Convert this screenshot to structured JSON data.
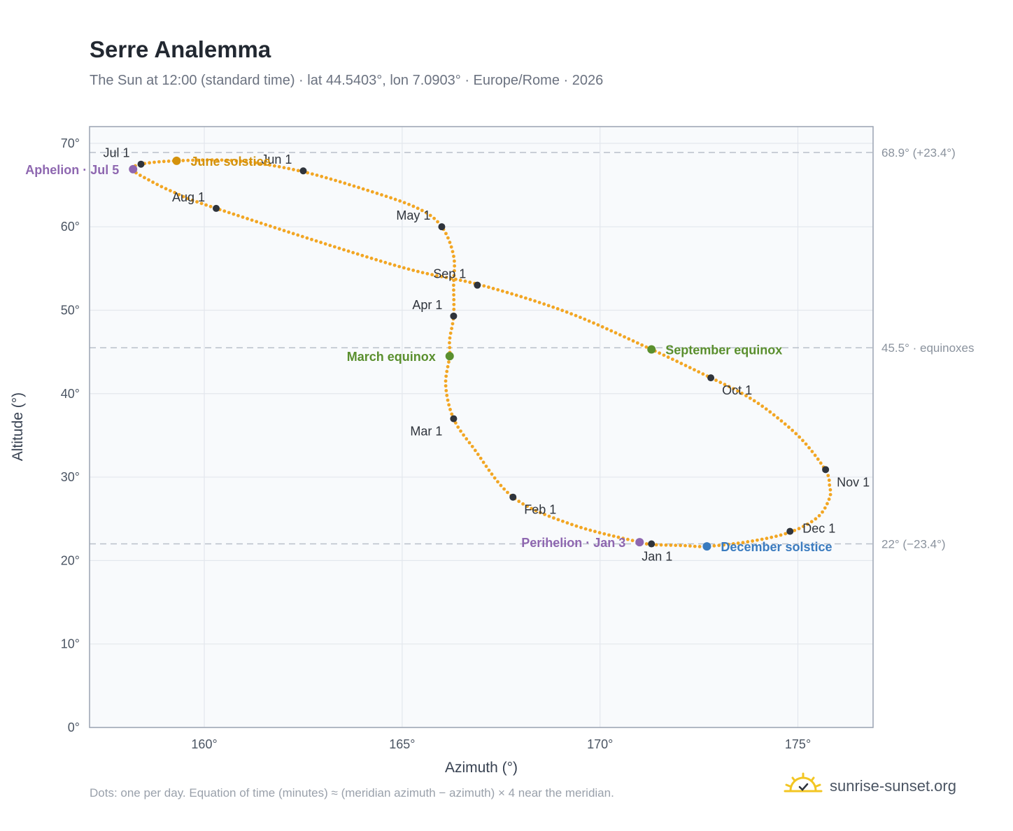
{
  "header": {
    "title": "Serre Analemma",
    "subtitle": "The Sun at 12:00 (standard time) · lat 44.5403°, lon 7.0903° · Europe/Rome · 2026"
  },
  "footer": {
    "note": "Dots: one per day. Equation of time (minutes) ≈ (meridian azimuth − azimuth) × 4 near the meridian.",
    "brand": "sunrise-sunset.org"
  },
  "colors": {
    "path": "#f2a623",
    "month_marker": "#2f343c",
    "equinox": "#5a8f2e",
    "june_solstice": "#d4920c",
    "december_solstice": "#3a7bbf",
    "apsis": "#8e67b0",
    "plot_background": "#f8fafc",
    "brand_sun": "#f3c623"
  },
  "chart_data": {
    "type": "scatter",
    "xlabel": "Azimuth (°)",
    "ylabel": "Altitude (°)",
    "xlim": [
      157.1,
      176.9
    ],
    "ylim": [
      0,
      72
    ],
    "xticks": [
      160,
      165,
      170,
      175
    ],
    "yticks": [
      0,
      10,
      20,
      30,
      40,
      50,
      60,
      70
    ],
    "xtick_labels": [
      "160°",
      "165°",
      "170°",
      "175°"
    ],
    "ytick_labels": [
      "0°",
      "10°",
      "20°",
      "30°",
      "40°",
      "50°",
      "60°",
      "70°"
    ],
    "grid": true,
    "path_anchors": [
      {
        "x": 171.3,
        "y": 21.9
      },
      {
        "x": 172.1,
        "y": 21.8
      },
      {
        "x": 172.7,
        "y": 21.7
      },
      {
        "x": 173.8,
        "y": 22.3
      },
      {
        "x": 174.8,
        "y": 23.4
      },
      {
        "x": 175.5,
        "y": 25.2
      },
      {
        "x": 175.8,
        "y": 27.5
      },
      {
        "x": 175.8,
        "y": 29.0
      },
      {
        "x": 175.7,
        "y": 30.8
      },
      {
        "x": 175.1,
        "y": 34.5
      },
      {
        "x": 174.3,
        "y": 37.8
      },
      {
        "x": 173.6,
        "y": 40.0
      },
      {
        "x": 172.8,
        "y": 41.9
      },
      {
        "x": 171.3,
        "y": 45.3
      },
      {
        "x": 169.2,
        "y": 49.7
      },
      {
        "x": 167.0,
        "y": 53.0
      },
      {
        "x": 164.8,
        "y": 55.4
      },
      {
        "x": 160.3,
        "y": 62.2
      },
      {
        "x": 159.2,
        "y": 64.2
      },
      {
        "x": 158.6,
        "y": 65.6
      },
      {
        "x": 158.2,
        "y": 66.8
      },
      {
        "x": 158.4,
        "y": 67.5
      },
      {
        "x": 159.3,
        "y": 67.9
      },
      {
        "x": 160.8,
        "y": 67.9
      },
      {
        "x": 162.4,
        "y": 66.7
      },
      {
        "x": 164.1,
        "y": 64.4
      },
      {
        "x": 165.4,
        "y": 62.2
      },
      {
        "x": 166.0,
        "y": 60.0
      },
      {
        "x": 166.3,
        "y": 56.5
      },
      {
        "x": 166.3,
        "y": 53.0
      },
      {
        "x": 166.3,
        "y": 49.3
      },
      {
        "x": 166.2,
        "y": 46.5
      },
      {
        "x": 166.2,
        "y": 44.5
      },
      {
        "x": 166.1,
        "y": 41.0
      },
      {
        "x": 166.3,
        "y": 37.0
      },
      {
        "x": 166.8,
        "y": 33.5
      },
      {
        "x": 167.8,
        "y": 27.6
      },
      {
        "x": 169.3,
        "y": 24.3
      },
      {
        "x": 171.0,
        "y": 22.2
      },
      {
        "x": 171.3,
        "y": 21.9
      }
    ],
    "month_markers": [
      {
        "label": "Jan 1",
        "x": 171.3,
        "y": 22.0,
        "anchor": "below"
      },
      {
        "label": "Feb 1",
        "x": 167.8,
        "y": 27.6,
        "anchor": "below-right"
      },
      {
        "label": "Mar 1",
        "x": 166.3,
        "y": 37.0,
        "anchor": "below-left"
      },
      {
        "label": "Apr 1",
        "x": 166.3,
        "y": 49.3,
        "anchor": "above-left"
      },
      {
        "label": "May 1",
        "x": 166.0,
        "y": 60.0,
        "anchor": "above-left"
      },
      {
        "label": "Jun 1",
        "x": 162.5,
        "y": 66.7,
        "anchor": "above-left"
      },
      {
        "label": "Jul 1",
        "x": 158.4,
        "y": 67.5,
        "anchor": "above-left"
      },
      {
        "label": "Aug 1",
        "x": 160.3,
        "y": 62.2,
        "anchor": "above-left"
      },
      {
        "label": "Sep 1",
        "x": 166.9,
        "y": 53.0,
        "anchor": "above-left"
      },
      {
        "label": "Oct 1",
        "x": 172.8,
        "y": 41.9,
        "anchor": "below-right"
      },
      {
        "label": "Nov 1",
        "x": 175.7,
        "y": 30.9,
        "anchor": "below-right"
      },
      {
        "label": "Dec 1",
        "x": 174.8,
        "y": 23.5,
        "anchor": "right"
      }
    ],
    "events": [
      {
        "label": "Aphelion · Jul 5",
        "x": 158.2,
        "y": 66.9,
        "kind": "apsis",
        "side": "left"
      },
      {
        "label": "June solstice",
        "x": 159.3,
        "y": 67.9,
        "kind": "june_solstice",
        "side": "right"
      },
      {
        "label": "March equinox",
        "x": 166.2,
        "y": 44.5,
        "kind": "equinox",
        "side": "left"
      },
      {
        "label": "September equinox",
        "x": 171.3,
        "y": 45.3,
        "kind": "equinox",
        "side": "right"
      },
      {
        "label": "Perihelion · Jan 3",
        "x": 171.0,
        "y": 22.2,
        "kind": "apsis",
        "side": "left"
      },
      {
        "label": "December solstice",
        "x": 172.7,
        "y": 21.7,
        "kind": "december_solstice",
        "side": "right"
      }
    ],
    "reference_lines": [
      {
        "y": 68.9,
        "label": "68.9° (+23.4°)"
      },
      {
        "y": 45.5,
        "label": "45.5° · equinoxes"
      },
      {
        "y": 22.0,
        "label": "22° (−23.4°)"
      }
    ]
  }
}
